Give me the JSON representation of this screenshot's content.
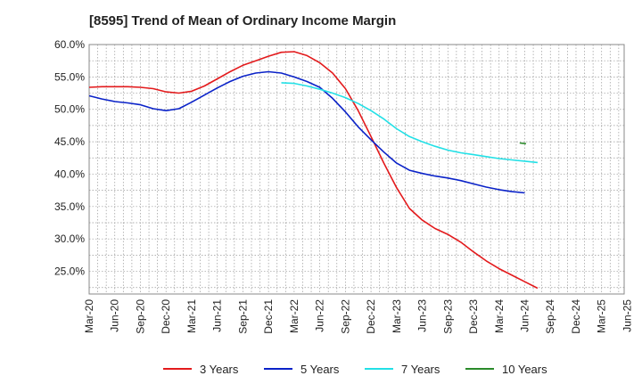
{
  "chart_data": {
    "type": "line",
    "title": "[8595]  Trend of Mean of Ordinary Income Margin",
    "xlabel": "",
    "ylabel": "",
    "ylim": [
      21.5,
      60.0
    ],
    "grid": true,
    "legend_position": "bottom",
    "x_tick_labels": [
      "Mar-20",
      "Jun-20",
      "Sep-20",
      "Dec-20",
      "Mar-21",
      "Jun-21",
      "Sep-21",
      "Dec-21",
      "Mar-22",
      "Jun-22",
      "Sep-22",
      "Dec-22",
      "Mar-23",
      "Jun-23",
      "Sep-23",
      "Dec-23",
      "Mar-24",
      "Jun-24",
      "Sep-24",
      "Dec-24",
      "Mar-25",
      "Jun-25"
    ],
    "y_ticks": [
      25,
      30,
      35,
      40,
      45,
      50,
      55,
      60
    ],
    "y_tick_labels": [
      "25.0%",
      "30.0%",
      "35.0%",
      "40.0%",
      "45.0%",
      "50.0%",
      "55.0%",
      "60.0%"
    ],
    "series": [
      {
        "name": "3 Years",
        "color": "#e31a1c",
        "x": [
          0,
          0.5,
          1,
          1.5,
          2,
          2.5,
          3,
          3.5,
          4,
          4.5,
          5,
          5.5,
          6,
          6.5,
          7,
          7.5,
          8,
          8.5,
          9,
          9.5,
          10,
          10.5,
          11,
          11.5,
          12,
          12.5,
          13,
          13.5,
          14,
          14.5,
          15,
          15.5,
          16,
          16.5,
          17,
          17.5,
          18,
          18.5,
          19,
          19.5,
          20
        ],
        "y": [
          53.4,
          53.5,
          53.5,
          53.5,
          53.4,
          53.2,
          52.7,
          52.5,
          52.8,
          53.6,
          54.7,
          55.8,
          56.8,
          57.5,
          58.2,
          58.8,
          58.9,
          58.3,
          57.2,
          55.6,
          53.2,
          49.8,
          45.8,
          41.7,
          37.9,
          34.7,
          32.9,
          31.6,
          30.7,
          29.5,
          28.0,
          26.6,
          25.4,
          24.4,
          23.4,
          22.4,
          null,
          null,
          null,
          null,
          null
        ]
      },
      {
        "name": "5 Years",
        "color": "#0a22c8",
        "x": [
          0,
          0.5,
          1,
          1.5,
          2,
          2.5,
          3,
          3.5,
          4,
          4.5,
          5,
          5.5,
          6,
          6.5,
          7,
          7.5,
          8,
          8.5,
          9,
          9.5,
          10,
          10.5,
          11,
          11.5,
          12,
          12.5,
          13,
          13.5,
          14,
          14.5,
          15,
          15.5,
          16,
          16.5,
          17,
          17.5,
          18,
          18.5,
          19,
          19.5,
          20
        ],
        "y": [
          52.1,
          51.6,
          51.2,
          51.0,
          50.7,
          50.1,
          49.8,
          50.1,
          51.1,
          52.2,
          53.3,
          54.3,
          55.1,
          55.6,
          55.8,
          55.6,
          55.0,
          54.3,
          53.4,
          51.7,
          49.6,
          47.3,
          45.3,
          43.4,
          41.7,
          40.6,
          40.1,
          39.7,
          39.4,
          39.0,
          38.5,
          38.0,
          37.6,
          37.3,
          37.1,
          null,
          null,
          null,
          null,
          null,
          null
        ]
      },
      {
        "name": "7 Years",
        "color": "#22e0e6",
        "x": [
          7.5,
          8,
          8.5,
          9,
          9.5,
          10,
          10.5,
          11,
          11.5,
          12,
          12.5,
          13,
          13.5,
          14,
          14.5,
          15,
          15.5,
          16,
          16.5,
          17,
          17.5
        ],
        "y": [
          54.1,
          54.0,
          53.6,
          53.1,
          52.5,
          51.8,
          50.9,
          49.8,
          48.5,
          47.0,
          45.8,
          45.0,
          44.3,
          43.7,
          43.3,
          43.0,
          42.7,
          42.4,
          42.2,
          42.0,
          41.8
        ]
      },
      {
        "name": "10 Years",
        "color": "#2a8a2a",
        "x": [
          16.8,
          17.05
        ],
        "y": [
          44.8,
          44.7
        ]
      }
    ]
  }
}
